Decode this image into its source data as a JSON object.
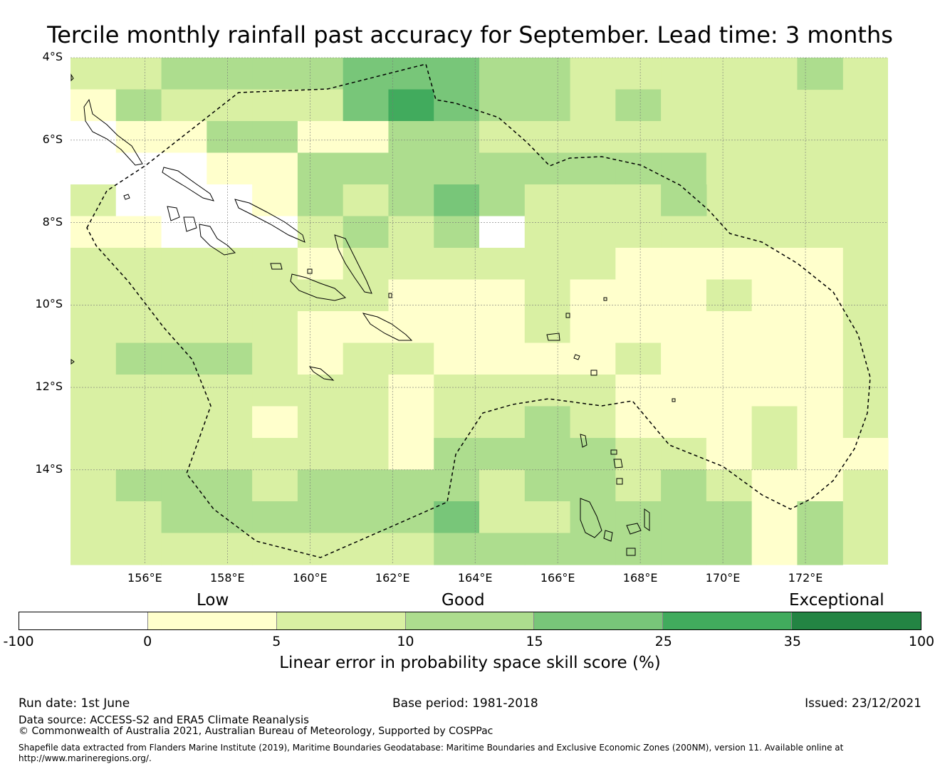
{
  "title": "Tercile monthly rainfall past accuracy for September. Lead time: 3 months",
  "map": {
    "lat_labels": [
      "4°S",
      "6°S",
      "8°S",
      "10°S",
      "12°S",
      "14°S"
    ],
    "lon_labels": [
      "156°E",
      "158°E",
      "160°E",
      "162°E",
      "164°E",
      "166°E",
      "168°E",
      "170°E",
      "172°E"
    ],
    "grid_shown": true,
    "lon_range": [
      154.2,
      174.0
    ],
    "lat_range": [
      -4.0,
      -16.3
    ],
    "cell_size_deg": 0.83,
    "skill_grid": [
      "11222233322111112",
      "02111134322121",
      "-1002200221111111",
      "-1-1-1002222222221",
      "1-1-1-10212321112",
      "00-1-1-11212-11111",
      "11111011111100000",
      "11111110001000100",
      "11111000001000000",
      "12221011000010000",
      "11111110111100000",
      "11110110112100010",
      "111111102222110100",
      "12221222212212100",
      "11222222311222202",
      "11111111222222202"
    ],
    "colors": {
      "-1": "#ffffff",
      "0": "#ffffcc",
      "1": "#d9f0a3",
      "2": "#addd8e",
      "3": "#78c679",
      "4": "#41ab5d",
      "5": "#238443"
    },
    "eez_boundary": "dashed",
    "region": "Solomon Islands"
  },
  "category_labels": [
    "Low",
    "Good",
    "Exceptional"
  ],
  "colorbar": {
    "ticks": [
      "-100",
      "0",
      "5",
      "10",
      "15",
      "25",
      "35",
      "100"
    ],
    "colors": [
      "#ffffff",
      "#ffffcc",
      "#d9f0a3",
      "#addd8e",
      "#78c679",
      "#41ab5d",
      "#238443"
    ],
    "title": "Linear error in probability space skill score (%)"
  },
  "footer": {
    "run_date": "Run date: 1st June",
    "base_period": "Base period: 1981-2018",
    "issued": "Issued: 23/12/2021",
    "data_source": "Data source: ACCESS-S2 and ERA5 Climate Reanalysis",
    "copyright": "© Commonwealth of Australia 2021, Australian Bureau of Meteorology, Supported by COSPPac",
    "shapefile_line1": "Shapefile data extracted from Flanders Marine Institute (2019), Maritime Boundaries Geodatabase: Maritime Boundaries and Exclusive Economic Zones (200NM), version 11. Available online at",
    "shapefile_line2": "http://www.marineregions.org/."
  }
}
